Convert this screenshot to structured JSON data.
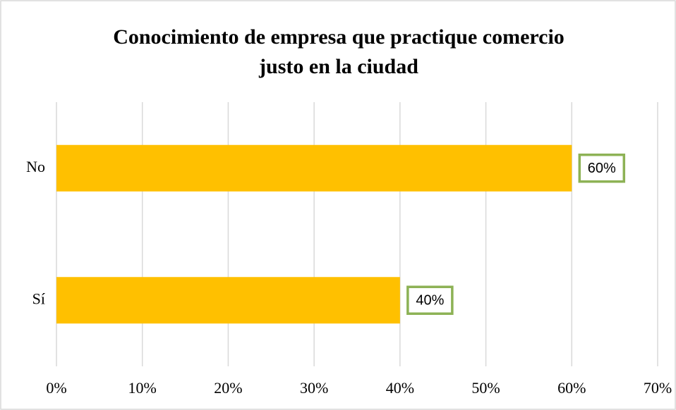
{
  "chart_data": {
    "type": "bar",
    "orientation": "horizontal",
    "title": "Conocimiento de empresa que practique comercio justo en la ciudad",
    "categories": [
      "No",
      "Sí"
    ],
    "values": [
      60,
      40
    ],
    "value_labels": [
      "60%",
      "40%"
    ],
    "color": "#FFC000",
    "label_border_color": "#8DB255",
    "xlim": [
      0,
      70
    ],
    "xticks": [
      {
        "value": 0,
        "label": "0%"
      },
      {
        "value": 10,
        "label": "10%"
      },
      {
        "value": 20,
        "label": "20%"
      },
      {
        "value": 30,
        "label": "30%"
      },
      {
        "value": 40,
        "label": "40%"
      },
      {
        "value": 50,
        "label": "50%"
      },
      {
        "value": 60,
        "label": "60%"
      },
      {
        "value": 70,
        "label": "70%"
      }
    ],
    "grid": true
  }
}
